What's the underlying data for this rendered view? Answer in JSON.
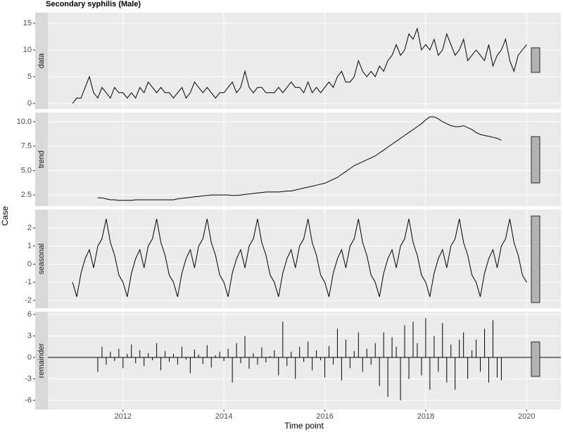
{
  "chart_data": [
    {
      "type": "line",
      "title": "Secondary syphilis (Male)",
      "ylabel": "Case",
      "strip": "data",
      "color": "#000000",
      "xlim": [
        2010.51,
        2020.68
      ],
      "xticks": [
        2012,
        2014,
        2016,
        2018,
        2020
      ],
      "ylim": [
        -1.05,
        16.97
      ],
      "yticks": [
        0,
        5,
        10,
        15
      ],
      "grid": true,
      "range_bar": [
        5.8,
        10.4
      ],
      "x": [
        2011,
        2011.083,
        2011.167,
        2011.25,
        2011.333,
        2011.417,
        2011.5,
        2011.583,
        2011.667,
        2011.75,
        2011.833,
        2011.917,
        2012,
        2012.083,
        2012.167,
        2012.25,
        2012.333,
        2012.417,
        2012.5,
        2012.583,
        2012.667,
        2012.75,
        2012.833,
        2012.917,
        2013,
        2013.083,
        2013.167,
        2013.25,
        2013.333,
        2013.417,
        2013.5,
        2013.583,
        2013.667,
        2013.75,
        2013.833,
        2013.917,
        2014,
        2014.083,
        2014.167,
        2014.25,
        2014.333,
        2014.417,
        2014.5,
        2014.583,
        2014.667,
        2014.75,
        2014.833,
        2014.917,
        2015,
        2015.083,
        2015.167,
        2015.25,
        2015.333,
        2015.417,
        2015.5,
        2015.583,
        2015.667,
        2015.75,
        2015.833,
        2015.917,
        2016,
        2016.083,
        2016.167,
        2016.25,
        2016.333,
        2016.417,
        2016.5,
        2016.583,
        2016.667,
        2016.75,
        2016.833,
        2016.917,
        2017,
        2017.083,
        2017.167,
        2017.25,
        2017.333,
        2017.417,
        2017.5,
        2017.583,
        2017.667,
        2017.75,
        2017.833,
        2017.917,
        2018,
        2018.083,
        2018.167,
        2018.25,
        2018.333,
        2018.417,
        2018.5,
        2018.583,
        2018.667,
        2018.75,
        2018.833,
        2018.917,
        2019,
        2019.083,
        2019.167,
        2019.25,
        2019.333,
        2019.417,
        2019.5,
        2019.583,
        2019.667,
        2019.75,
        2019.833,
        2019.917,
        2020
      ],
      "values": [
        0,
        1,
        1,
        3,
        5,
        2,
        1,
        3,
        2,
        1,
        3,
        2,
        2,
        1,
        2,
        1,
        3,
        2,
        4,
        3,
        2,
        3,
        2,
        2,
        1,
        2,
        3,
        1,
        2,
        4,
        3,
        2,
        3,
        2,
        1,
        2,
        2,
        3,
        4,
        2,
        3,
        6,
        3,
        2,
        3,
        3,
        2,
        2,
        2,
        3,
        2,
        3,
        4,
        3,
        3,
        2,
        4,
        2,
        3,
        2,
        3,
        4,
        3,
        5,
        6,
        4,
        4,
        5,
        8,
        6,
        5,
        6,
        5,
        7,
        6,
        8,
        9,
        11,
        9,
        10,
        13,
        12,
        14,
        10,
        11,
        10,
        12,
        9,
        10,
        13,
        11,
        9,
        10,
        12,
        8,
        9,
        10,
        9,
        8,
        11,
        7,
        9,
        10,
        12,
        8,
        6,
        9,
        10,
        11
      ]
    },
    {
      "type": "line",
      "strip": "trend",
      "color": "#000000",
      "xlim": [
        2010.51,
        2020.68
      ],
      "xticks": [
        2012,
        2014,
        2016,
        2018,
        2020
      ],
      "ylim": [
        1.35,
        10.94
      ],
      "yticks": [
        2.5,
        {
          "value": 5,
          "label": "5.0"
        },
        7.5,
        {
          "value": 10,
          "label": "10.0"
        }
      ],
      "grid": true,
      "range_bar": [
        3.73,
        8.48
      ],
      "x": [
        2011.5,
        2011.583,
        2011.667,
        2011.75,
        2011.833,
        2011.917,
        2012,
        2012.083,
        2012.167,
        2012.25,
        2012.333,
        2012.417,
        2012.5,
        2012.583,
        2012.667,
        2012.75,
        2012.833,
        2012.917,
        2013,
        2013.083,
        2013.167,
        2013.25,
        2013.333,
        2013.417,
        2013.5,
        2013.583,
        2013.667,
        2013.75,
        2013.833,
        2013.917,
        2014,
        2014.083,
        2014.167,
        2014.25,
        2014.333,
        2014.417,
        2014.5,
        2014.583,
        2014.667,
        2014.75,
        2014.833,
        2014.917,
        2015,
        2015.083,
        2015.167,
        2015.25,
        2015.333,
        2015.417,
        2015.5,
        2015.583,
        2015.667,
        2015.75,
        2015.833,
        2015.917,
        2016,
        2016.083,
        2016.167,
        2016.25,
        2016.333,
        2016.417,
        2016.5,
        2016.583,
        2016.667,
        2016.75,
        2016.833,
        2016.917,
        2017,
        2017.083,
        2017.167,
        2017.25,
        2017.333,
        2017.417,
        2017.5,
        2017.583,
        2017.667,
        2017.75,
        2017.833,
        2017.917,
        2018,
        2018.083,
        2018.167,
        2018.25,
        2018.333,
        2018.417,
        2018.5,
        2018.583,
        2018.667,
        2018.75,
        2018.833,
        2018.917,
        2019,
        2019.083,
        2019.167,
        2019.25,
        2019.333,
        2019.417,
        2019.5
      ],
      "values": [
        2.2,
        2.2,
        2.1,
        2.0,
        2.0,
        1.95,
        1.95,
        1.95,
        1.95,
        2.0,
        2.0,
        2.0,
        2.0,
        2.0,
        2.0,
        2.0,
        2.0,
        2.0,
        2.0,
        2.1,
        2.15,
        2.2,
        2.25,
        2.3,
        2.35,
        2.4,
        2.45,
        2.5,
        2.5,
        2.5,
        2.5,
        2.5,
        2.45,
        2.45,
        2.5,
        2.55,
        2.6,
        2.65,
        2.7,
        2.75,
        2.8,
        2.8,
        2.8,
        2.8,
        2.85,
        2.9,
        2.9,
        3.0,
        3.1,
        3.2,
        3.3,
        3.4,
        3.5,
        3.6,
        3.7,
        3.9,
        4.1,
        4.3,
        4.6,
        4.9,
        5.2,
        5.5,
        5.7,
        5.9,
        6.1,
        6.3,
        6.5,
        6.8,
        7.1,
        7.4,
        7.7,
        8.0,
        8.3,
        8.6,
        8.9,
        9.2,
        9.5,
        9.8,
        10.2,
        10.5,
        10.5,
        10.3,
        10.0,
        9.8,
        9.6,
        9.5,
        9.5,
        9.6,
        9.4,
        9.2,
        8.9,
        8.7,
        8.6,
        8.5,
        8.4,
        8.3,
        8.1
      ]
    },
    {
      "type": "line",
      "strip": "seasonal",
      "color": "#000000",
      "xlim": [
        2010.51,
        2020.68
      ],
      "xticks": [
        2012,
        2014,
        2016,
        2018,
        2020
      ],
      "ylim": [
        -2.43,
        3.01
      ],
      "yticks": [
        -2,
        -1,
        0,
        1,
        2
      ],
      "grid": true,
      "range_bar": [
        -2.12,
        2.66
      ],
      "x": [
        2011,
        2011.083,
        2011.167,
        2011.25,
        2011.333,
        2011.417,
        2011.5,
        2011.583,
        2011.667,
        2011.75,
        2011.833,
        2011.917,
        2012,
        2012.083,
        2012.167,
        2012.25,
        2012.333,
        2012.417,
        2012.5,
        2012.583,
        2012.667,
        2012.75,
        2012.833,
        2012.917,
        2013,
        2013.083,
        2013.167,
        2013.25,
        2013.333,
        2013.417,
        2013.5,
        2013.583,
        2013.667,
        2013.75,
        2013.833,
        2013.917,
        2014,
        2014.083,
        2014.167,
        2014.25,
        2014.333,
        2014.417,
        2014.5,
        2014.583,
        2014.667,
        2014.75,
        2014.833,
        2014.917,
        2015,
        2015.083,
        2015.167,
        2015.25,
        2015.333,
        2015.417,
        2015.5,
        2015.583,
        2015.667,
        2015.75,
        2015.833,
        2015.917,
        2016,
        2016.083,
        2016.167,
        2016.25,
        2016.333,
        2016.417,
        2016.5,
        2016.583,
        2016.667,
        2016.75,
        2016.833,
        2016.917,
        2017,
        2017.083,
        2017.167,
        2017.25,
        2017.333,
        2017.417,
        2017.5,
        2017.583,
        2017.667,
        2017.75,
        2017.833,
        2017.917,
        2018,
        2018.083,
        2018.167,
        2018.25,
        2018.333,
        2018.417,
        2018.5,
        2018.583,
        2018.667,
        2018.75,
        2018.833,
        2018.917,
        2019,
        2019.083,
        2019.167,
        2019.25,
        2019.333,
        2019.417,
        2019.5,
        2019.583,
        2019.667,
        2019.75,
        2019.833,
        2019.917,
        2020
      ],
      "values": [
        -1.0,
        -1.8,
        -0.5,
        0.3,
        0.8,
        -0.2,
        1.0,
        1.4,
        2.5,
        1.2,
        0.5,
        -0.6,
        -1.0,
        -1.8,
        -0.5,
        0.3,
        0.8,
        -0.2,
        1.0,
        1.4,
        2.5,
        1.2,
        0.5,
        -0.6,
        -1.0,
        -1.8,
        -0.5,
        0.3,
        0.8,
        -0.2,
        1.0,
        1.4,
        2.5,
        1.2,
        0.5,
        -0.6,
        -1.0,
        -1.8,
        -0.5,
        0.3,
        0.8,
        -0.2,
        1.0,
        1.4,
        2.5,
        1.2,
        0.5,
        -0.6,
        -1.0,
        -1.8,
        -0.5,
        0.3,
        0.8,
        -0.2,
        1.0,
        1.4,
        2.5,
        1.2,
        0.5,
        -0.6,
        -1.0,
        -1.8,
        -0.5,
        0.3,
        0.8,
        -0.2,
        1.0,
        1.4,
        2.5,
        1.2,
        0.5,
        -0.6,
        -1.0,
        -1.8,
        -0.5,
        0.3,
        0.8,
        -0.2,
        1.0,
        1.4,
        2.5,
        1.2,
        0.5,
        -0.6,
        -1.0,
        -1.8,
        -0.5,
        0.3,
        0.8,
        -0.2,
        1.0,
        1.4,
        2.5,
        1.2,
        0.5,
        -0.6,
        -1.0,
        -1.8,
        -0.5,
        0.3,
        0.8,
        -0.2,
        1.0,
        1.4,
        2.5,
        1.2,
        0.5,
        -0.6,
        -1.0
      ]
    },
    {
      "type": "bar",
      "strip": "remainder",
      "xlabel": "Time point",
      "color": "#000000",
      "xlim": [
        2010.51,
        2020.68
      ],
      "xticks": [
        2012,
        2014,
        2016,
        2018,
        2020
      ],
      "ylim": [
        -7.27,
        6.39
      ],
      "yticks": [
        -6,
        -3,
        0,
        3,
        6
      ],
      "grid": true,
      "range_bar": [
        -2.65,
        2.17
      ],
      "x": [
        2011.5,
        2011.583,
        2011.667,
        2011.75,
        2011.833,
        2011.917,
        2012,
        2012.083,
        2012.167,
        2012.25,
        2012.333,
        2012.417,
        2012.5,
        2012.583,
        2012.667,
        2012.75,
        2012.833,
        2012.917,
        2013,
        2013.083,
        2013.167,
        2013.25,
        2013.333,
        2013.417,
        2013.5,
        2013.583,
        2013.667,
        2013.75,
        2013.833,
        2013.917,
        2014,
        2014.083,
        2014.167,
        2014.25,
        2014.333,
        2014.417,
        2014.5,
        2014.583,
        2014.667,
        2014.75,
        2014.833,
        2014.917,
        2015,
        2015.083,
        2015.167,
        2015.25,
        2015.333,
        2015.417,
        2015.5,
        2015.583,
        2015.667,
        2015.75,
        2015.833,
        2015.917,
        2016,
        2016.083,
        2016.167,
        2016.25,
        2016.333,
        2016.417,
        2016.5,
        2016.583,
        2016.667,
        2016.75,
        2016.833,
        2016.917,
        2017,
        2017.083,
        2017.167,
        2017.25,
        2017.333,
        2017.417,
        2017.5,
        2017.583,
        2017.667,
        2017.75,
        2017.833,
        2017.917,
        2018,
        2018.083,
        2018.167,
        2018.25,
        2018.333,
        2018.417,
        2018.5,
        2018.583,
        2018.667,
        2018.75,
        2018.833,
        2018.917,
        2019,
        2019.083,
        2019.167,
        2019.25,
        2019.333,
        2019.417,
        2019.5
      ],
      "values": [
        -2.0,
        1.5,
        -1.0,
        0.8,
        -0.5,
        1.2,
        -1.5,
        0.5,
        1.8,
        -0.8,
        1.0,
        -1.2,
        0.6,
        -0.4,
        2.0,
        -1.8,
        0.9,
        -0.6,
        0.5,
        -1.0,
        1.5,
        -0.3,
        -2.2,
        1.1,
        0.4,
        -0.9,
        1.7,
        -1.4,
        0.3,
        0.8,
        -0.5,
        1.2,
        -3.5,
        2.0,
        -0.8,
        3.0,
        -1.6,
        0.6,
        -1.0,
        1.4,
        -0.7,
        0.2,
        1.0,
        -2.5,
        5.0,
        -1.2,
        0.8,
        -3.0,
        1.5,
        -0.6,
        2.2,
        -1.8,
        1.0,
        -0.4,
        -2.8,
        1.6,
        -1.0,
        4.0,
        -3.2,
        2.5,
        -1.5,
        0.9,
        3.5,
        -2.0,
        1.2,
        -1.0,
        2.0,
        -4.0,
        3.5,
        -5.5,
        2.8,
        1.5,
        -6.0,
        4.5,
        -3.0,
        5.0,
        2.0,
        -2.5,
        5.5,
        -4.5,
        3.0,
        -2.0,
        4.8,
        -3.5,
        1.8,
        -4.5,
        2.5,
        3.5,
        -3.0,
        1.0,
        2.5,
        -2.0,
        4.0,
        -3.5,
        5.2,
        -2.8,
        -3.2
      ]
    }
  ]
}
